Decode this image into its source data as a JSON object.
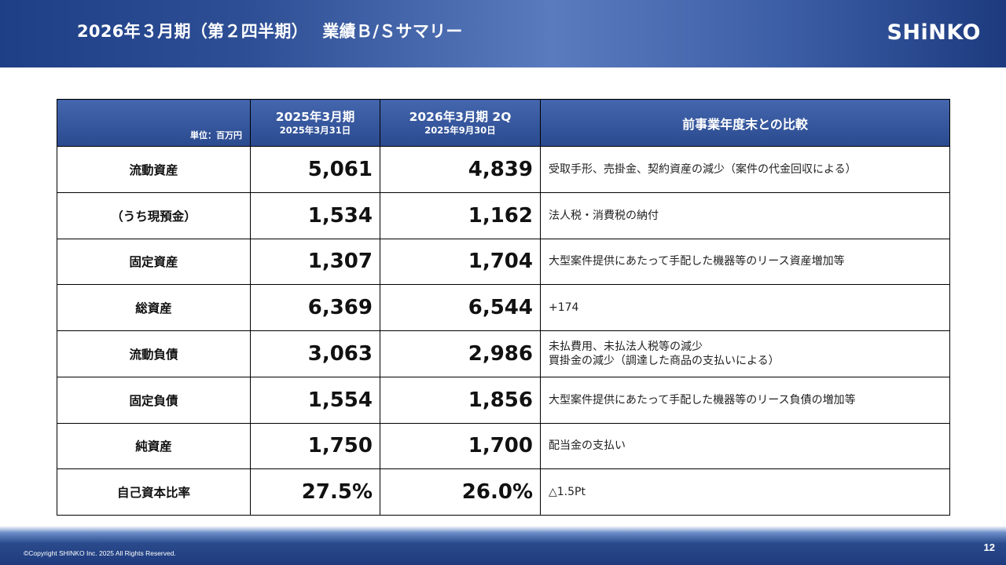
{
  "header": {
    "title": "2026年３月期（第２四半期）　 業績Ｂ/Ｓサマリー",
    "logo": "SHiNKO"
  },
  "table": {
    "unit": "単位：百万円",
    "columns": [
      {
        "main": "2025年3月期",
        "sub": "2025年3月31日"
      },
      {
        "main": "2026年3月期 2Q",
        "sub": "2025年9月30日"
      }
    ],
    "comparison_header": "前事業年度末との比較",
    "rows": [
      {
        "item": "流動資産",
        "prev": "5,061",
        "curr": "4,839",
        "note": [
          "受取手形、売掛金、契約資産の減少（案件の代金回収による）"
        ]
      },
      {
        "item": "（うち現預金）",
        "prev": "1,534",
        "curr": "1,162",
        "note": [
          "法人税・消費税の納付"
        ]
      },
      {
        "item": "固定資産",
        "prev": "1,307",
        "curr": "1,704",
        "note": [
          "大型案件提供にあたって手配した機器等のリース資産増加等"
        ]
      },
      {
        "item": "総資産",
        "prev": "6,369",
        "curr": "6,544",
        "note": [
          "+174"
        ]
      },
      {
        "item": "流動負債",
        "prev": "3,063",
        "curr": "2,986",
        "note": [
          "未払費用、未払法人税等の減少",
          "買掛金の減少（調達した商品の支払いによる）"
        ]
      },
      {
        "item": "固定負債",
        "prev": "1,554",
        "curr": "1,856",
        "note": [
          "大型案件提供にあたって手配した機器等のリース負債の増加等"
        ]
      },
      {
        "item": "純資産",
        "prev": "1,750",
        "curr": "1,700",
        "note": [
          "配当金の支払い"
        ]
      },
      {
        "item": "自己資本比率",
        "prev": "27.5%",
        "curr": "26.0%",
        "note": [
          "△1.5Pt"
        ]
      }
    ]
  },
  "footer": {
    "copyright": "©Copyright SHINKO Inc. 2025 All Rights Reserved.",
    "page_number": "12"
  }
}
